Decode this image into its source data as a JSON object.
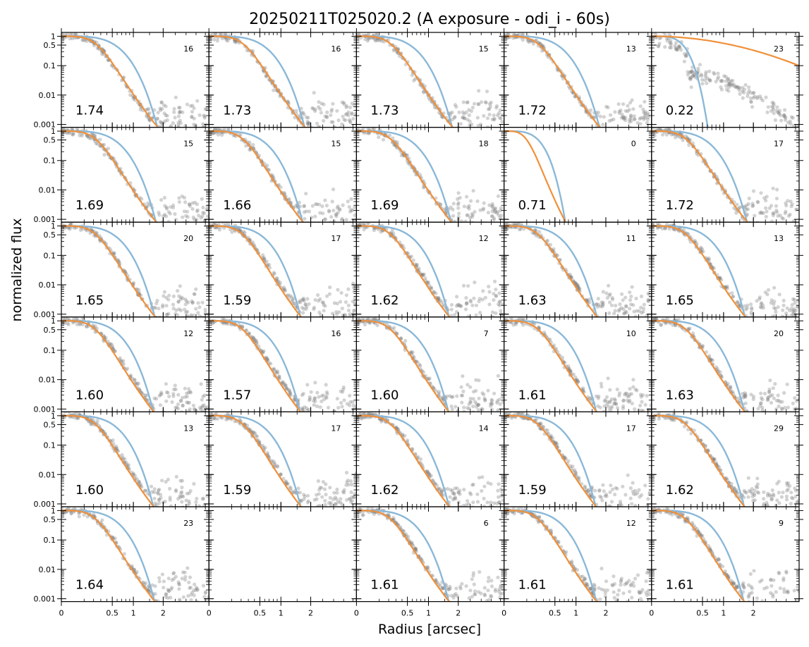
{
  "chart_data": {
    "type": "scatter",
    "title": "20250211T025020.2 (A exposure - odi_i - 60s)",
    "xlabel": "Radius [arcsec]",
    "ylabel": "normalized flux",
    "grid": false,
    "yscale": "log",
    "ylim": [
      0.0008,
      1.35
    ],
    "y_ticks": [
      {
        "v": 1,
        "label": "1"
      },
      {
        "v": 0.5,
        "label": "0.5"
      },
      {
        "v": 0.1,
        "label": "0.1"
      },
      {
        "v": 0.01,
        "label": "0.01"
      },
      {
        "v": 0.001,
        "label": "0.001"
      }
    ],
    "xscale": "sqrt",
    "xlim": [
      0,
      4.2
    ],
    "x_ticks": [
      {
        "v": 0,
        "label": "0"
      },
      {
        "v": 0.5,
        "label": "0.5"
      },
      {
        "v": 1,
        "label": "1"
      },
      {
        "v": 2,
        "label": "2"
      }
    ],
    "rows": 6,
    "cols": 5,
    "series_colors": {
      "data": "#808080",
      "model_narrow": "#8ab8d8",
      "model_wide": "#f0903a"
    },
    "panels": [
      {
        "fwhm": "1.74",
        "n": "16",
        "fw": 1.74
      },
      {
        "fwhm": "1.73",
        "n": "16",
        "fw": 1.73
      },
      {
        "fwhm": "1.73",
        "n": "15",
        "fw": 1.73
      },
      {
        "fwhm": "1.72",
        "n": "13",
        "fw": 1.72
      },
      {
        "fwhm": "0.22",
        "n": "23",
        "fw": 0.22,
        "anomalous": true
      },
      {
        "fwhm": "1.69",
        "n": "15",
        "fw": 1.69
      },
      {
        "fwhm": "1.66",
        "n": "15",
        "fw": 1.66
      },
      {
        "fwhm": "1.69",
        "n": "18",
        "fw": 1.69
      },
      {
        "fwhm": "0.71",
        "n": "0",
        "fw": 0.71,
        "empty": true
      },
      {
        "fwhm": "1.72",
        "n": "17",
        "fw": 1.72
      },
      {
        "fwhm": "1.65",
        "n": "20",
        "fw": 1.65
      },
      {
        "fwhm": "1.59",
        "n": "17",
        "fw": 1.59
      },
      {
        "fwhm": "1.62",
        "n": "12",
        "fw": 1.62
      },
      {
        "fwhm": "1.63",
        "n": "11",
        "fw": 1.63
      },
      {
        "fwhm": "1.65",
        "n": "13",
        "fw": 1.65
      },
      {
        "fwhm": "1.60",
        "n": "12",
        "fw": 1.6
      },
      {
        "fwhm": "1.57",
        "n": "16",
        "fw": 1.57
      },
      {
        "fwhm": "1.60",
        "n": "7",
        "fw": 1.6
      },
      {
        "fwhm": "1.61",
        "n": "10",
        "fw": 1.61
      },
      {
        "fwhm": "1.63",
        "n": "20",
        "fw": 1.63
      },
      {
        "fwhm": "1.60",
        "n": "13",
        "fw": 1.6
      },
      {
        "fwhm": "1.59",
        "n": "17",
        "fw": 1.59
      },
      {
        "fwhm": "1.62",
        "n": "14",
        "fw": 1.62
      },
      {
        "fwhm": "1.59",
        "n": "17",
        "fw": 1.59
      },
      {
        "fwhm": "1.62",
        "n": "29",
        "fw": 1.62
      },
      {
        "fwhm": "1.64",
        "n": "23",
        "fw": 1.64
      },
      {
        "fwhm": "",
        "n": "",
        "fw": null,
        "blank": true
      },
      {
        "fwhm": "1.61",
        "n": "6",
        "fw": 1.61
      },
      {
        "fwhm": "1.61",
        "n": "12",
        "fw": 1.61
      },
      {
        "fwhm": "1.61",
        "n": "9",
        "fw": 1.61
      }
    ]
  }
}
